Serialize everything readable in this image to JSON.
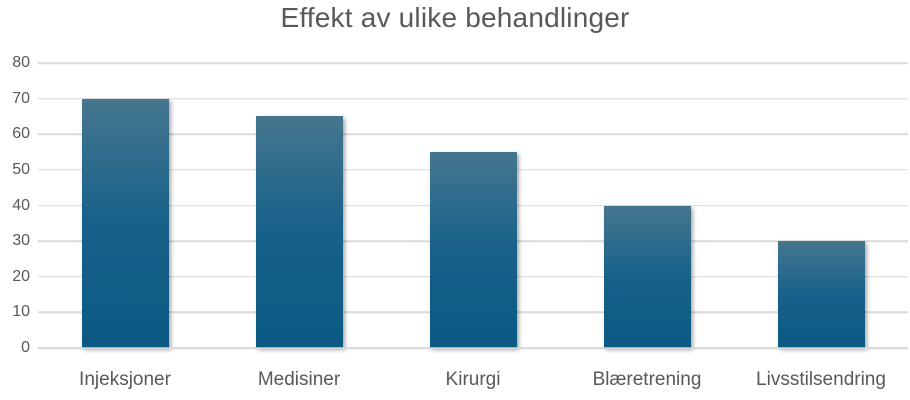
{
  "chart_data": {
    "type": "bar",
    "title": "Effekt av ulike behandlinger",
    "categories": [
      "Injeksjoner",
      "Medisiner",
      "Kirurgi",
      "Blæretrening",
      "Livsstilsendring"
    ],
    "values": [
      70,
      65,
      55,
      40,
      30
    ],
    "xlabel": "",
    "ylabel": "",
    "ylim": [
      0,
      80
    ],
    "yticks": [
      0,
      10,
      20,
      30,
      40,
      50,
      60,
      70,
      80
    ],
    "grid": true,
    "legend": false,
    "bar_width_fraction": 0.5,
    "colors": {
      "bar_gradient_top": "#45768f",
      "bar_gradient_mid": "#17618a",
      "bar_gradient_bottom": "#0b5a83",
      "gridline": "#d9d9d9",
      "axis_label": "#595959",
      "title": "#595959",
      "background": "#ffffff"
    }
  }
}
